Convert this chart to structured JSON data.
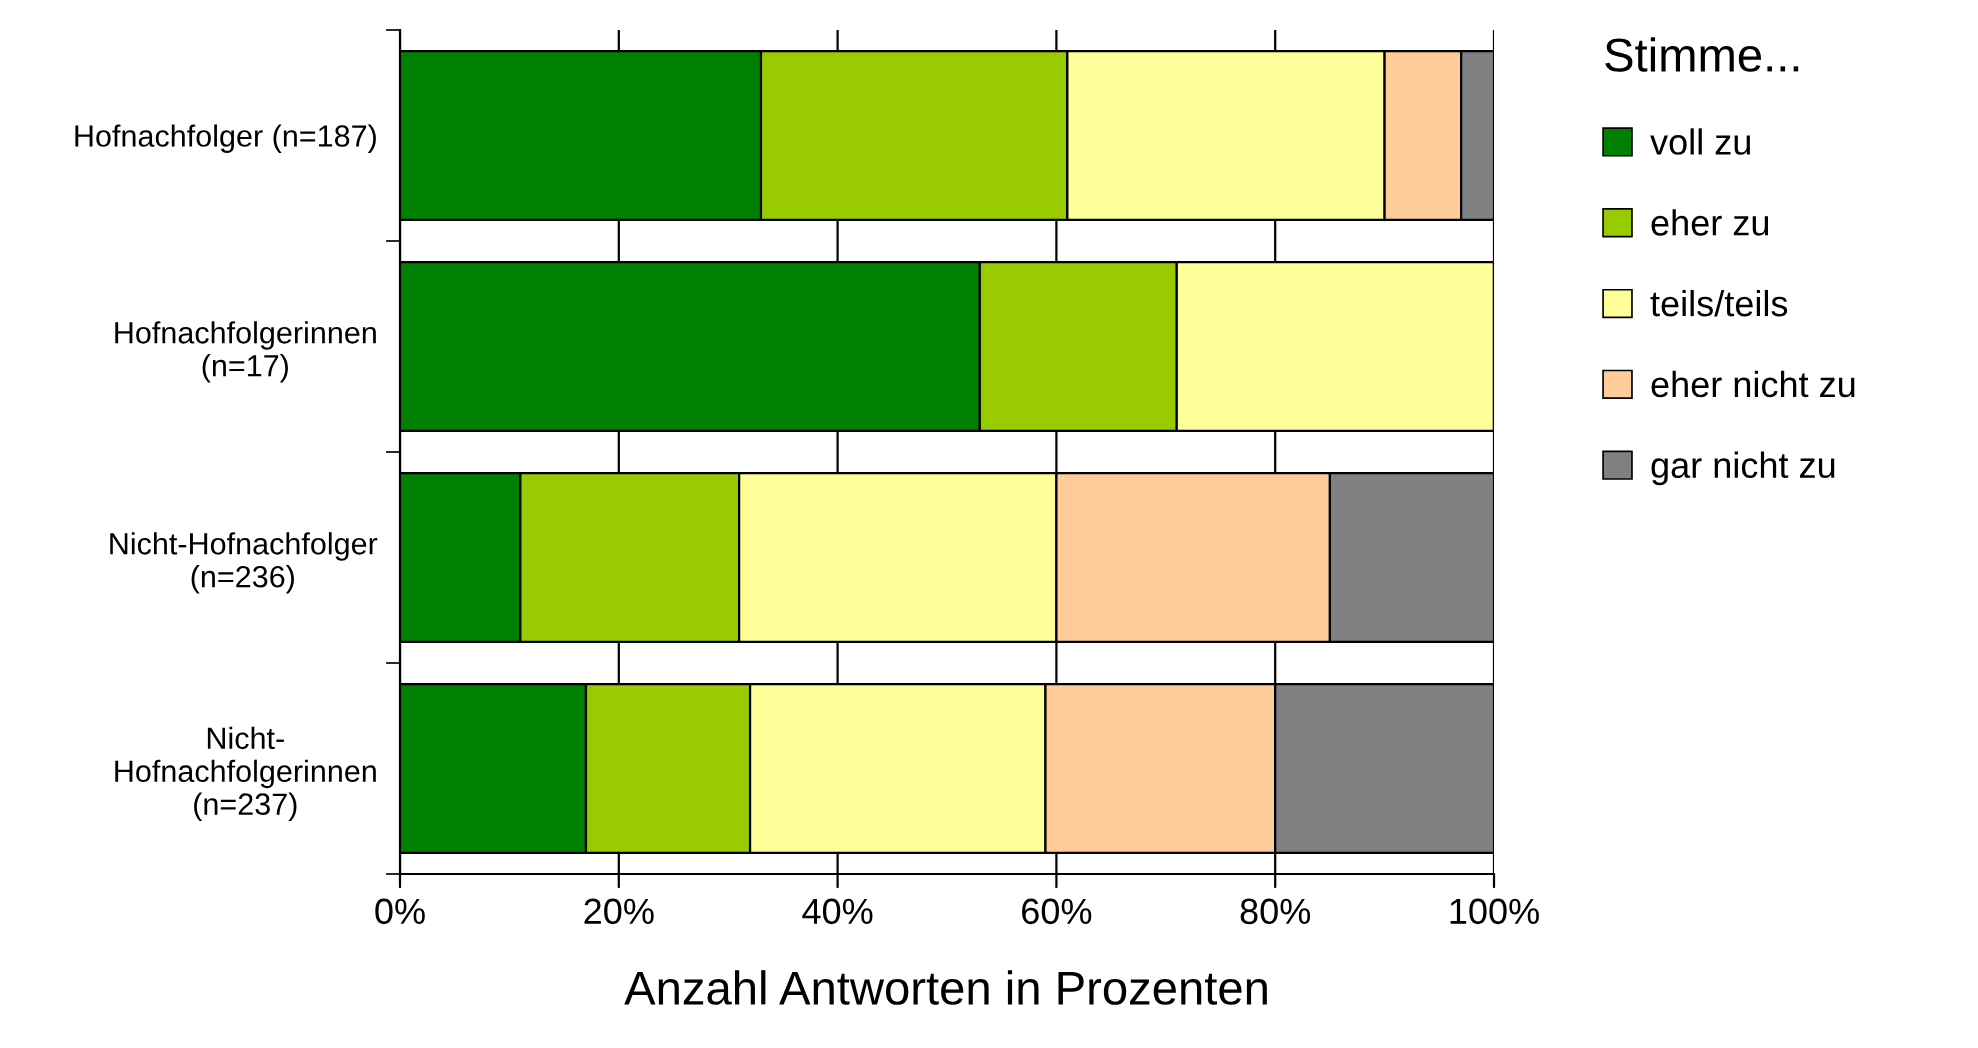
{
  "chart_data": {
    "type": "bar",
    "orientation": "horizontal",
    "stacked": true,
    "xlabel": "Anzahl Antworten in Prozenten",
    "legend_title": "Stimme...",
    "legend": "right",
    "grid": "x",
    "categories": [
      "Hofnachfolger (n=187)",
      "Hofnachfolgerinnen\n(n=17)",
      "Nicht-Hofnachfolger\n(n=236)",
      "Nicht-\nHofnachfolgerinnen\n(n=237)"
    ],
    "xlim": [
      0,
      100
    ],
    "xticks": [
      {
        "value": 0,
        "label": "0%"
      },
      {
        "value": 20,
        "label": "20%"
      },
      {
        "value": 40,
        "label": "40%"
      },
      {
        "value": 60,
        "label": "60%"
      },
      {
        "value": 80,
        "label": "80%"
      },
      {
        "value": 100,
        "label": "100%"
      }
    ],
    "series": [
      {
        "name": "voll zu",
        "color": "#008000",
        "values": [
          33,
          53,
          11,
          17
        ]
      },
      {
        "name": "eher zu",
        "color": "#99cc00",
        "values": [
          28,
          18,
          20,
          15
        ]
      },
      {
        "name": "teils/teils",
        "color": "#ffff99",
        "values": [
          29,
          29,
          29,
          27
        ]
      },
      {
        "name": "eher nicht zu",
        "color": "#ffcc99",
        "values": [
          7,
          0,
          25,
          21
        ]
      },
      {
        "name": "gar nicht zu",
        "color": "#808080",
        "values": [
          3,
          0,
          15,
          20
        ]
      }
    ]
  }
}
